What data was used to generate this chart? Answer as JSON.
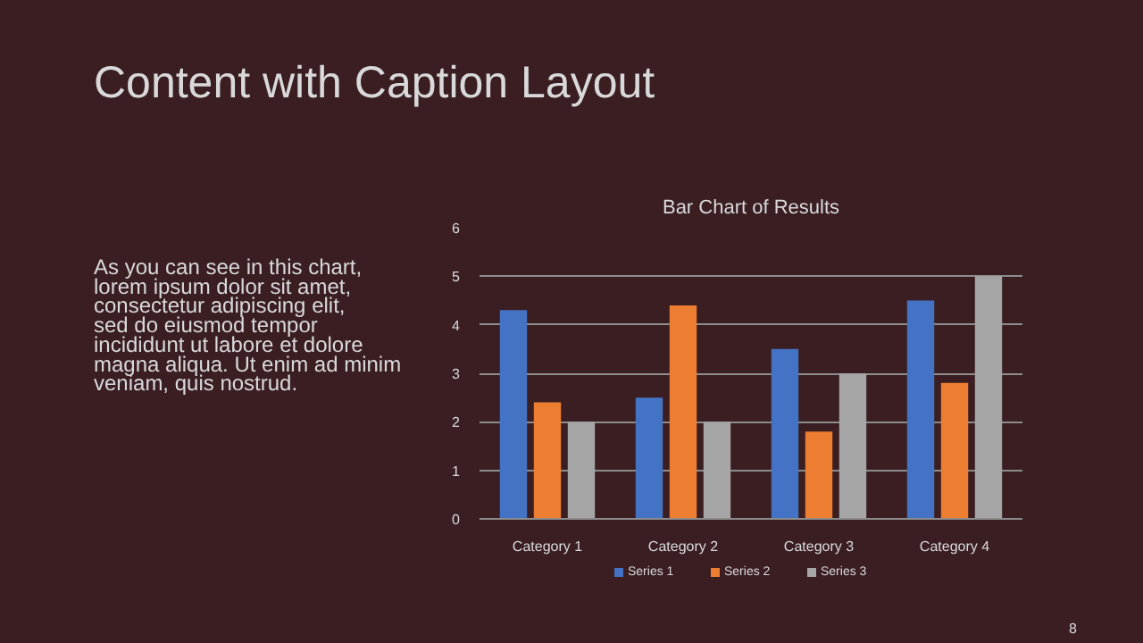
{
  "chart_data": {
    "type": "bar",
    "title": "Bar Chart of Results",
    "categories": [
      "Category 1",
      "Category 2",
      "Category 3",
      "Category 4"
    ],
    "series": [
      {
        "name": "Series 1",
        "color": "#4472c4",
        "values": [
          4.3,
          2.5,
          3.5,
          4.5
        ]
      },
      {
        "name": "Series 2",
        "color": "#ed7d31",
        "values": [
          2.4,
          4.4,
          1.8,
          2.8
        ]
      },
      {
        "name": "Series 3",
        "color": "#a5a5a5",
        "values": [
          2,
          2,
          3,
          5
        ]
      }
    ],
    "ylim": [
      0,
      6
    ],
    "yticks": [
      0,
      1,
      2,
      3,
      4,
      5,
      6
    ],
    "grid": "y",
    "legend": "bottom",
    "annotations": [
      "Content with Caption Layout",
      "As you can see in this chart, lorem ipsum dolor sit amet, consectetur adipiscing elit, sed do eiusmod tempor incididunt ut labore et dolore magna aliqua. Ut enim ad minim veniam, quis nostrud.",
      "8"
    ]
  }
}
